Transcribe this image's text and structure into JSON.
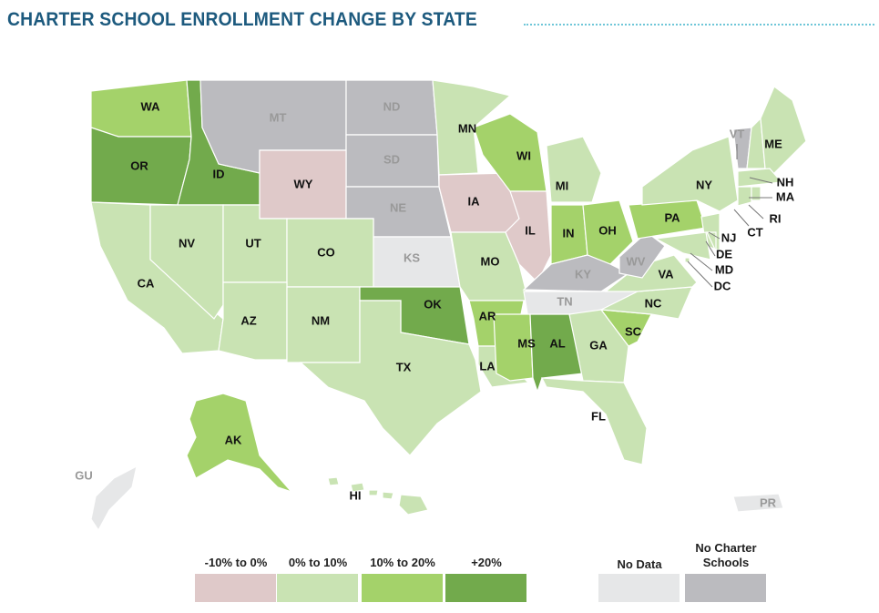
{
  "title": "CHARTER SCHOOL ENROLLMENT CHANGE BY STATE",
  "chart_data": {
    "type": "choropleth",
    "title": "CHARTER SCHOOL ENROLLMENT CHANGE BY STATE",
    "categories": [
      {
        "id": "neg",
        "label": "-10% to 0%",
        "color": "#dfc9c9"
      },
      {
        "id": "low",
        "label": "0% to 10%",
        "color": "#c9e3b3"
      },
      {
        "id": "mid",
        "label": "10% to 20%",
        "color": "#a4d26a"
      },
      {
        "id": "high",
        "label": "+20%",
        "color": "#72aa4c"
      },
      {
        "id": "nodata",
        "label": "No Data",
        "color": "#e6e7e8"
      },
      {
        "id": "none",
        "label": "No Charter Schools",
        "color": "#bbbbbf"
      }
    ],
    "states": [
      {
        "code": "WA",
        "cat": "mid"
      },
      {
        "code": "OR",
        "cat": "high"
      },
      {
        "code": "ID",
        "cat": "high"
      },
      {
        "code": "MT",
        "cat": "none"
      },
      {
        "code": "ND",
        "cat": "none"
      },
      {
        "code": "SD",
        "cat": "none"
      },
      {
        "code": "WY",
        "cat": "neg"
      },
      {
        "code": "NE",
        "cat": "none"
      },
      {
        "code": "CA",
        "cat": "low"
      },
      {
        "code": "NV",
        "cat": "low"
      },
      {
        "code": "UT",
        "cat": "low"
      },
      {
        "code": "CO",
        "cat": "low"
      },
      {
        "code": "AZ",
        "cat": "low"
      },
      {
        "code": "NM",
        "cat": "low"
      },
      {
        "code": "KS",
        "cat": "nodata"
      },
      {
        "code": "OK",
        "cat": "high"
      },
      {
        "code": "TX",
        "cat": "low"
      },
      {
        "code": "MN",
        "cat": "low"
      },
      {
        "code": "IA",
        "cat": "neg"
      },
      {
        "code": "MO",
        "cat": "low"
      },
      {
        "code": "AR",
        "cat": "mid"
      },
      {
        "code": "LA",
        "cat": "low"
      },
      {
        "code": "WI",
        "cat": "mid"
      },
      {
        "code": "IL",
        "cat": "neg"
      },
      {
        "code": "MI",
        "cat": "low"
      },
      {
        "code": "IN",
        "cat": "mid"
      },
      {
        "code": "OH",
        "cat": "mid"
      },
      {
        "code": "KY",
        "cat": "none"
      },
      {
        "code": "TN",
        "cat": "nodata"
      },
      {
        "code": "MS",
        "cat": "mid"
      },
      {
        "code": "AL",
        "cat": "high"
      },
      {
        "code": "GA",
        "cat": "low"
      },
      {
        "code": "FL",
        "cat": "low"
      },
      {
        "code": "SC",
        "cat": "mid"
      },
      {
        "code": "NC",
        "cat": "low"
      },
      {
        "code": "VA",
        "cat": "low"
      },
      {
        "code": "WV",
        "cat": "none"
      },
      {
        "code": "PA",
        "cat": "mid"
      },
      {
        "code": "NY",
        "cat": "low"
      },
      {
        "code": "NJ",
        "cat": "low"
      },
      {
        "code": "MD",
        "cat": "low"
      },
      {
        "code": "DE",
        "cat": "low"
      },
      {
        "code": "DC",
        "cat": "low"
      },
      {
        "code": "VT",
        "cat": "none"
      },
      {
        "code": "NH",
        "cat": "low"
      },
      {
        "code": "ME",
        "cat": "low"
      },
      {
        "code": "MA",
        "cat": "low"
      },
      {
        "code": "CT",
        "cat": "low"
      },
      {
        "code": "RI",
        "cat": "low"
      },
      {
        "code": "AK",
        "cat": "mid"
      },
      {
        "code": "HI",
        "cat": "low"
      },
      {
        "code": "GU",
        "cat": "nodata"
      },
      {
        "code": "PR",
        "cat": "nodata"
      }
    ],
    "legend_placement": "bottom"
  }
}
